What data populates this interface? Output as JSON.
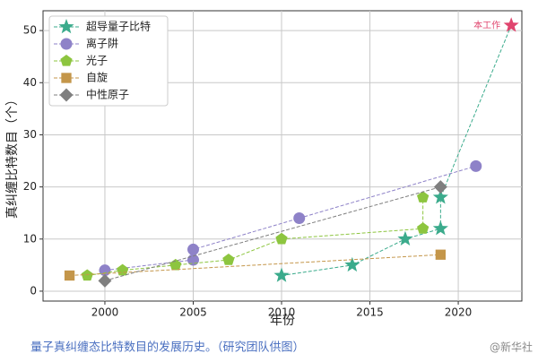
{
  "chart_data": {
    "type": "line",
    "y_label": "真纠缠比特数目（个）",
    "x_label": "年份",
    "xlim": [
      1996.5,
      2023.6
    ],
    "ylim": [
      -1.9,
      53.8
    ],
    "xticks": [
      2000,
      2005,
      2010,
      2015,
      2020
    ],
    "yticks": [
      0,
      10,
      20,
      30,
      40,
      50
    ],
    "grid": true,
    "legend": "upper left",
    "series": [
      {
        "name": "超导量子比特",
        "color": "#3bab8c",
        "marker": "star",
        "x": [
          2010,
          2014,
          2017,
          2019,
          2019,
          2023
        ],
        "values": [
          3,
          5,
          10,
          12,
          18,
          51
        ]
      },
      {
        "name": "离子阱",
        "color": "#8e82c8",
        "marker": "circle",
        "x": [
          2000,
          2005,
          2005,
          2011,
          2021
        ],
        "values": [
          4,
          6,
          8,
          14,
          24
        ]
      },
      {
        "name": "光子",
        "color": "#8dc53f",
        "marker": "pentagon",
        "x": [
          1999,
          2001,
          2004,
          2007,
          2010,
          2018,
          2018
        ],
        "values": [
          3,
          4,
          5,
          6,
          10,
          12,
          18
        ]
      },
      {
        "name": "自旋",
        "color": "#c4964a",
        "marker": "square",
        "x": [
          1998,
          2019
        ],
        "values": [
          3,
          7
        ]
      },
      {
        "name": "中性原子",
        "color": "#7f7f7f",
        "marker": "diamond",
        "x": [
          2000,
          2019
        ],
        "values": [
          2,
          20
        ]
      }
    ],
    "annotation": {
      "text": "本工作",
      "x": 2023,
      "y": 51,
      "color": "#e0456e"
    }
  },
  "caption": "量子真纠缠态比特数目的发展历史。（研究团队供图）",
  "watermark": "@新华社"
}
